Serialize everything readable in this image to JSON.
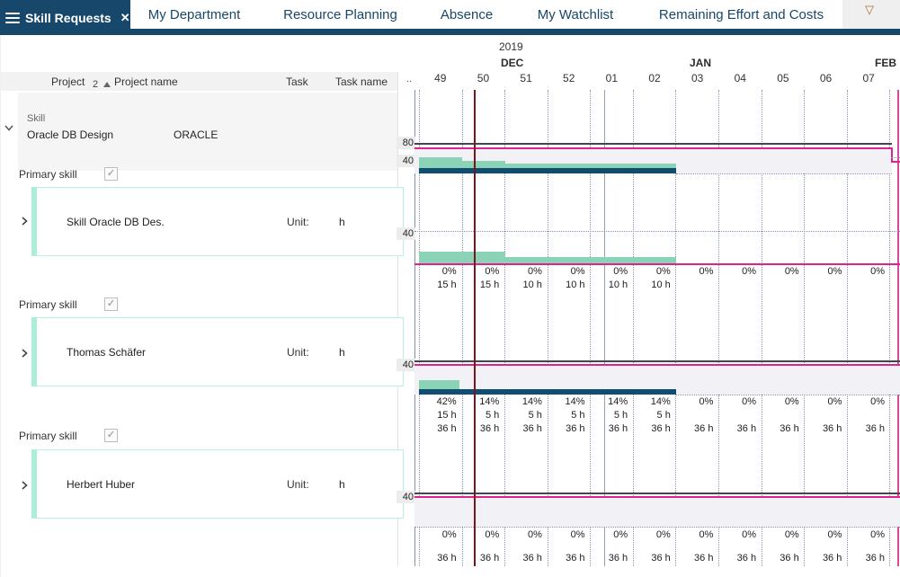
{
  "tab_bar": {
    "active_tab": {
      "label": "Skill Requests",
      "close_icon": "✕"
    },
    "tabs": [
      {
        "label": "My Department"
      },
      {
        "label": "Resource Planning"
      },
      {
        "label": "Absence"
      },
      {
        "label": "My Watchlist"
      },
      {
        "label": "Remaining Effort and Costs"
      }
    ]
  },
  "left_panel": {
    "headers": {
      "project": "Project",
      "sort_indicator": "2",
      "project_name": "Project name",
      "task": "Task",
      "task_name": "Task name"
    },
    "group": {
      "field_label": "Skill",
      "value": "Oracle DB Design",
      "code": "ORACLE"
    },
    "rows": [
      {
        "field_label": "Primary skill",
        "checked": true,
        "name": "Skill Oracle DB Des.",
        "unit_label": "Unit:",
        "unit_value": "h"
      },
      {
        "field_label": "Primary skill",
        "checked": true,
        "name": "Thomas Schäfer",
        "unit_label": "Unit:",
        "unit_value": "h"
      },
      {
        "field_label": "Primary skill",
        "checked": true,
        "name": "Herbert Huber",
        "unit_label": "Unit:",
        "unit_value": "h"
      }
    ]
  },
  "timeline": {
    "year": "2019",
    "months": [
      {
        "label": "DEC"
      },
      {
        "label": "JAN"
      },
      {
        "label": "FEB"
      }
    ],
    "partial_week": "..",
    "weeks": [
      "49",
      "50",
      "51",
      "52",
      "01",
      "02",
      "03",
      "04",
      "05",
      "06",
      "07"
    ]
  },
  "chart_data": [
    {
      "type": "gantt-histogram",
      "row": "skill-total-oracle-db-design",
      "scale_labels": [
        "80",
        "40"
      ],
      "load_hours_per_week": {
        "49": 30,
        "50": 25,
        "51": 20,
        "52": 20,
        "01": 20,
        "02": 20
      },
      "allocation_weeks": [
        "49",
        "50",
        "51",
        "52",
        "01",
        "02"
      ],
      "capacity_line_level": 80,
      "capacity_drop_at_week": "07"
    },
    {
      "type": "gantt-histogram",
      "row": "skill-oracle-db-des",
      "scale_labels": [
        "40"
      ],
      "percent": [
        "0%",
        "0%",
        "0%",
        "0%",
        "0%",
        "0%",
        "0%",
        "0%",
        "0%",
        "0%",
        "0%"
      ],
      "hours": [
        "15 h",
        "15 h",
        "10 h",
        "10 h",
        "10 h",
        "10 h",
        "",
        "",
        "",
        "",
        ""
      ]
    },
    {
      "type": "gantt-histogram",
      "row": "thomas-schaefer",
      "scale_labels": [
        "40"
      ],
      "percent": [
        "42%",
        "14%",
        "14%",
        "14%",
        "14%",
        "14%",
        "0%",
        "0%",
        "0%",
        "0%",
        "0%"
      ],
      "hours": [
        "15 h",
        "5 h",
        "5 h",
        "5 h",
        "5 h",
        "5 h",
        "",
        "",
        "",
        "",
        ""
      ],
      "capacity_hours": [
        "36 h",
        "36 h",
        "36 h",
        "36 h",
        "36 h",
        "36 h",
        "36 h",
        "36 h",
        "36 h",
        "36 h",
        "36 h"
      ]
    },
    {
      "type": "gantt-histogram",
      "row": "herbert-huber",
      "scale_labels": [
        "40"
      ],
      "percent": [
        "0%",
        "0%",
        "0%",
        "0%",
        "0%",
        "0%",
        "0%",
        "0%",
        "0%",
        "0%",
        "0%"
      ],
      "capacity_hours": [
        "36 h",
        "36 h",
        "36 h",
        "36 h",
        "36 h",
        "36 h",
        "36 h",
        "36 h",
        "36 h",
        "36 h",
        "36 h"
      ]
    }
  ],
  "colors": {
    "accent_navy": "#17486b",
    "bar_teal": "#8bd3b6",
    "bar_dark_teal": "#0f4e71",
    "capacity_pink": "#e0218e",
    "capacity_dark": "#42454d",
    "today_line_red": "#7e121d",
    "grid_blue_gray": "#8493ab"
  }
}
